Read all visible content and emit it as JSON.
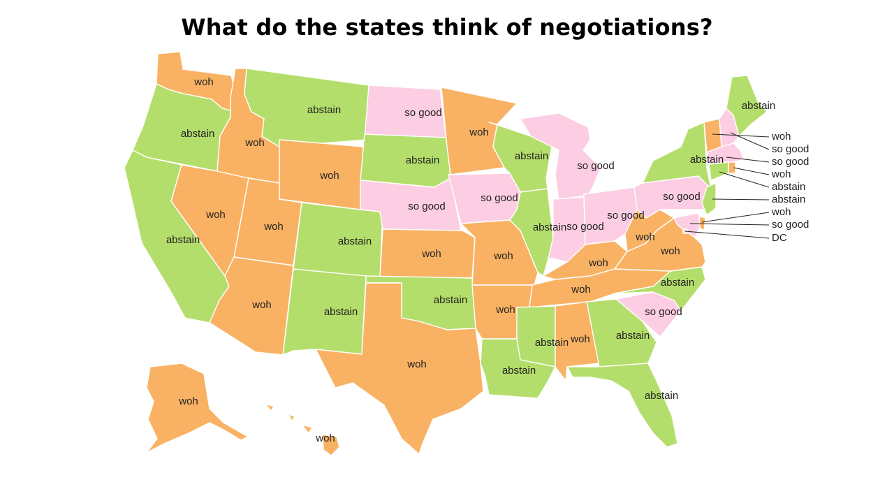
{
  "title": "What do the states think of negotiations?",
  "colors": {
    "woh": "#f9b263",
    "abstain": "#b4de6b",
    "so good": "#fccde3"
  },
  "states": {
    "WA": "woh",
    "OR": "abstain",
    "CA": "abstain",
    "NV": "woh",
    "ID": "woh",
    "MT": "abstain",
    "WY": "woh",
    "UT": "woh",
    "AZ": "woh",
    "CO": "abstain",
    "NM": "abstain",
    "ND": "so good",
    "SD": "abstain",
    "NE": "so good",
    "KS": "woh",
    "OK": "abstain",
    "TX": "woh",
    "MN": "woh",
    "IA": "so good",
    "MO": "woh",
    "AR": "woh",
    "LA": "abstain",
    "WI": "abstain",
    "IL": "abstain",
    "MI": "so good",
    "IN": "so good",
    "OH": "so good",
    "KY": "woh",
    "TN": "woh",
    "MS": "abstain",
    "AL": "woh",
    "GA": "abstain",
    "FL": "abstain",
    "SC": "so good",
    "NC": "abstain",
    "VA": "woh",
    "WV": "woh",
    "PA": "so good",
    "NY": "abstain",
    "ME": "abstain",
    "VT": "woh",
    "NH": "so good",
    "MA": "so good",
    "RI": "woh",
    "CT": "abstain",
    "NJ": "abstain",
    "DE": "woh",
    "MD": "so good",
    "DC": "DC",
    "AK": "woh",
    "HI": "woh"
  },
  "labels": {
    "WA": "woh",
    "OR": "abstain",
    "CA": "abstain",
    "NV": "woh",
    "ID": "woh",
    "MT": "abstain",
    "WY": "woh",
    "UT": "woh",
    "AZ": "woh",
    "CO": "abstain",
    "NM": "abstain",
    "ND": "so good",
    "SD": "abstain",
    "NE": "so good",
    "KS": "woh",
    "OK": "abstain",
    "TX": "woh",
    "MN": "woh",
    "IA": "so good",
    "MO": "woh",
    "AR": "woh",
    "LA": "abstain",
    "WI": "abstain",
    "IL": "abstain",
    "MI": "so good",
    "IN": "so good",
    "OH": "so good",
    "KY": "woh",
    "TN": "woh",
    "MS": "abstain",
    "AL": "woh",
    "GA": "abstain",
    "FL": "abstain",
    "SC": "so good",
    "NC": "abstain",
    "VA": "woh",
    "WV": "woh",
    "PA": "so good",
    "NY": "abstain",
    "ME": "abstain",
    "AK": "woh",
    "HI": "woh"
  },
  "callouts": [
    {
      "state": "VT",
      "text": "woh"
    },
    {
      "state": "NH",
      "text": "so good"
    },
    {
      "state": "MA",
      "text": "so good"
    },
    {
      "state": "RI",
      "text": "woh"
    },
    {
      "state": "CT",
      "text": "abstain"
    },
    {
      "state": "NJ",
      "text": "abstain"
    },
    {
      "state": "DE",
      "text": "woh"
    },
    {
      "state": "MD",
      "text": "so good"
    },
    {
      "state": "DC",
      "text": "DC"
    }
  ]
}
